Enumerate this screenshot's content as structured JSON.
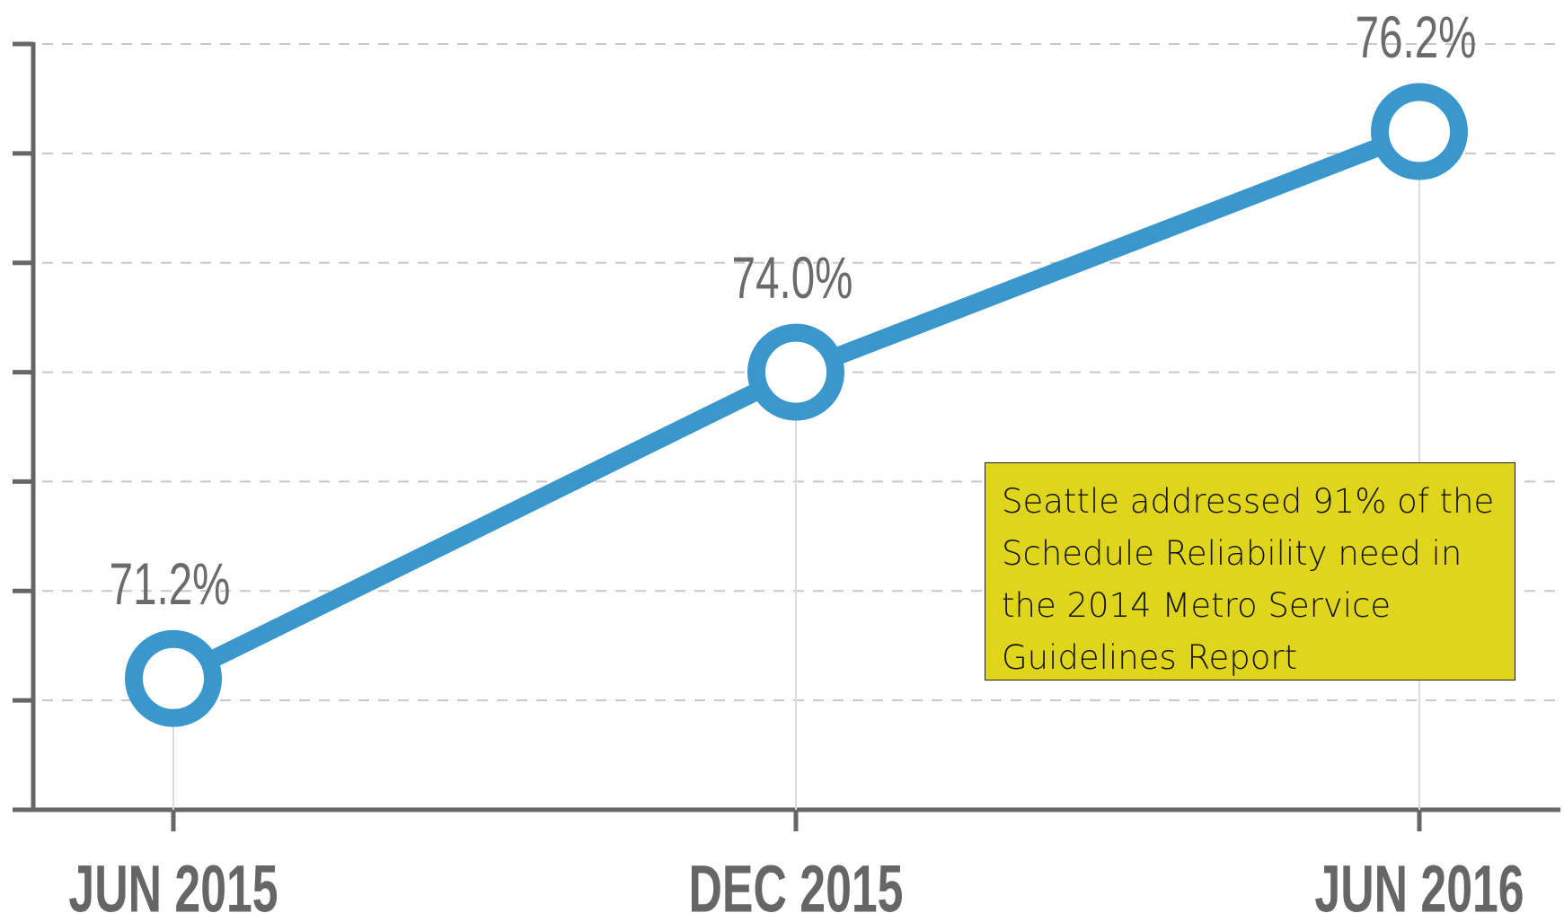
{
  "chart_data": {
    "type": "line",
    "categories": [
      "JUN 2015",
      "DEC 2015",
      "JUN 2016"
    ],
    "values": [
      71.2,
      74.0,
      76.2
    ],
    "value_labels": [
      "71.2%",
      "74.0%",
      "76.2%"
    ],
    "color": "#3a97cc",
    "ylim": [
      70,
      77
    ],
    "yticks": [
      70,
      71,
      72,
      73,
      74,
      75,
      76,
      77
    ],
    "grid": true,
    "annotation": "Seattle addressed 91% of the Schedule Reliability need in the 2014 Metro Service Guidelines Report"
  }
}
